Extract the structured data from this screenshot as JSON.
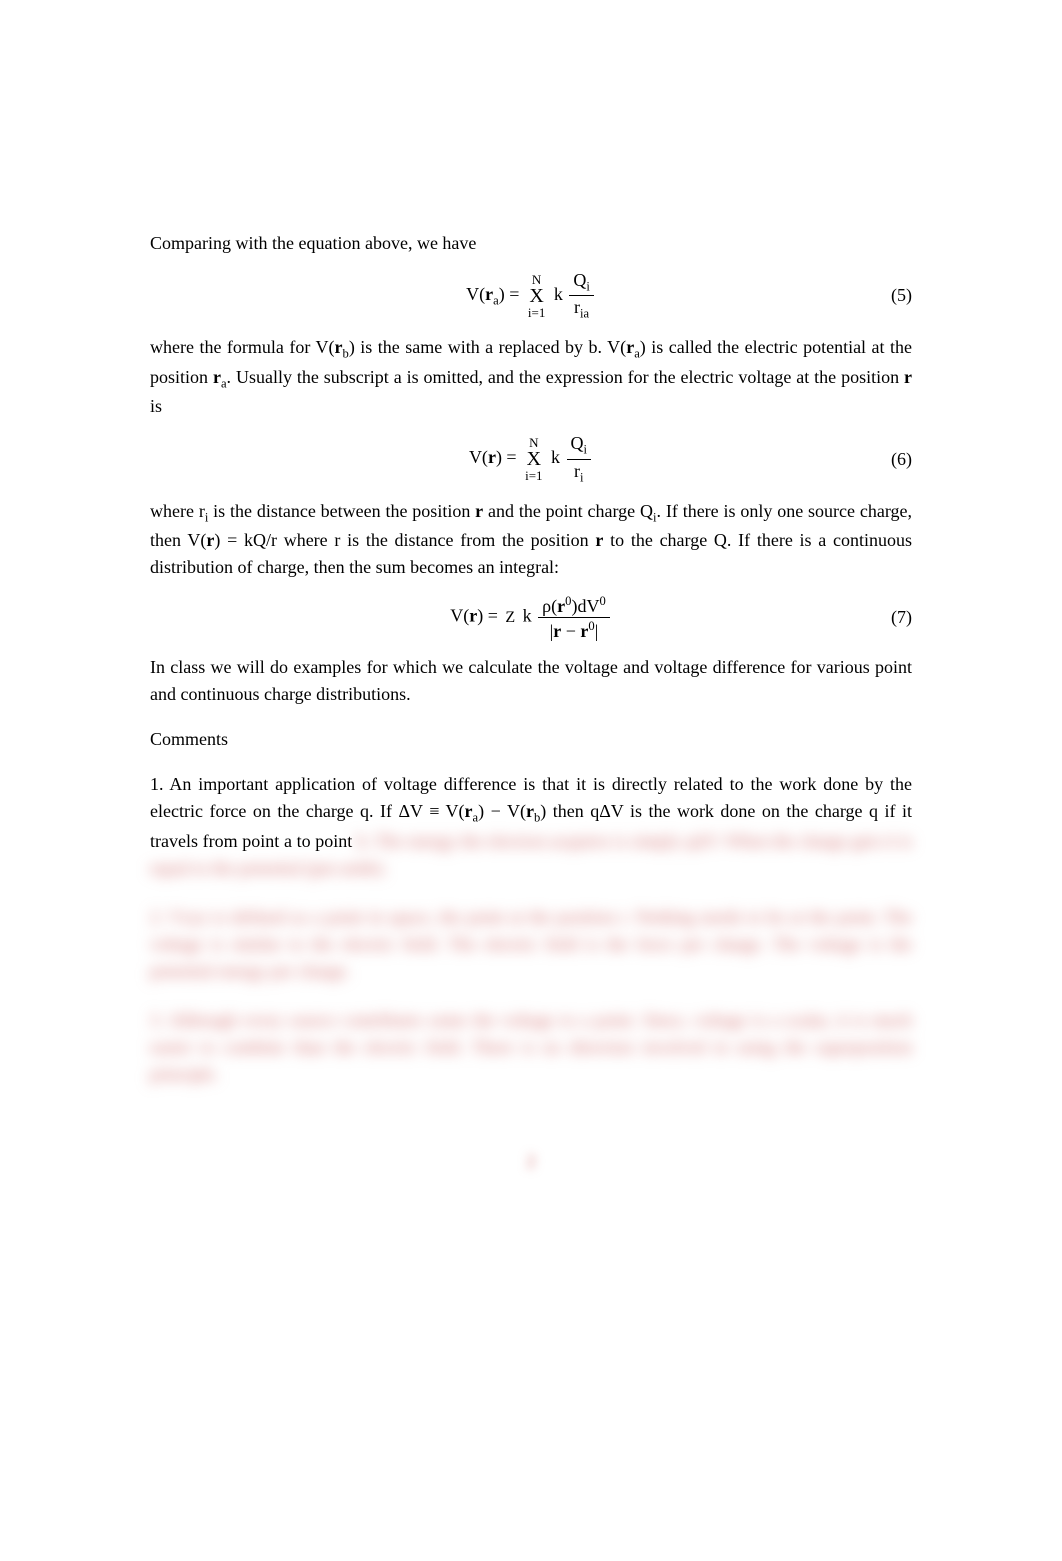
{
  "para1": "Comparing with the equation above, we have",
  "eq5": {
    "lhs_pre": "V(",
    "lhs_var": "r",
    "lhs_sub": "a",
    "lhs_post": ") = ",
    "sum_top": "N",
    "sum_sig": "X",
    "sum_bot": "i=1",
    "k": "k",
    "frac_top_pre": "Q",
    "frac_top_sub": "i",
    "frac_bot_pre": "r",
    "frac_bot_sub": "ia",
    "num": "(5)"
  },
  "para2_a": "where the formula for  V(",
  "para2_rb": "r",
  "para2_rb_sub": "b",
  "para2_b": ") is the same with  a replaced by  b.  V(",
  "para2_ra": "r",
  "para2_ra_sub": "a",
  "para2_c": ") is called the electric potential at the position  ",
  "para2_ra2": "r",
  "para2_ra2_sub": "a",
  "para2_d": ".  Usually the subscript  a is omitted, and the expression for the electric voltage at the position  ",
  "para2_r": "r",
  "para2_e": " is",
  "eq6": {
    "lhs_pre": "V(",
    "lhs_var": "r",
    "lhs_post": ") = ",
    "sum_top": "N",
    "sum_sig": "X",
    "sum_bot": "i=1",
    "k": "k",
    "frac_top_pre": "Q",
    "frac_top_sub": "i",
    "frac_bot_pre": "r",
    "frac_bot_sub": "i",
    "num": "(6)"
  },
  "para3_a": "where r",
  "para3_ri_sub": "i",
  "para3_b": " is the distance between the position  ",
  "para3_r1": "r",
  "para3_c": " and the point charge  Q",
  "para3_qi_sub": "i",
  "para3_d": ". If there is only one source charge, then  V(",
  "para3_r2": "r",
  "para3_e": ") = kQ/r  where r is the distance from the position  ",
  "para3_r3": "r",
  "para3_f": " to the charge  Q. If there is a continuous distribution of charge, then the sum becomes an integral:",
  "eq7": {
    "lhs_pre": "V(",
    "lhs_var": "r",
    "lhs_post": ") = ",
    "int_top": "Z",
    "k": "k",
    "frac_top_a": "ρ(",
    "frac_top_r": "r",
    "frac_top_b": "0",
    "frac_top_c": ")dV",
    "frac_top_d": "0",
    "frac_bot_a": "|",
    "frac_bot_r1": "r",
    "frac_bot_b": " − ",
    "frac_bot_r2": "r",
    "frac_bot_c": "0",
    "frac_bot_d": "|",
    "num": "(7)"
  },
  "para4": "In class we will do examples for which we calculate the voltage and voltage difference for various point and continuous charge distributions.",
  "comments_head": "Comments",
  "comment1_a": "1. An important application of voltage difference is that it is directly related to the work done by the electric force on the charge  q. If  ΔV ≡ V(",
  "comment1_ra": "r",
  "comment1_ra_sub": "a",
  "comment1_b": ") − V(",
  "comment1_rb": "r",
  "comment1_rb_sub": "b",
  "comment1_c": ") then  qΔV is the work done on the charge  q if it travels from point  a to point ",
  "blur1": "b. The energy the electron acquires is simply  qΔV. When the charge gets it is equal to the potential (put aside).",
  "blur2": "2. Vxyz is defined as a point in space, the point at the position  r. Nothing needs to be at the point. The voltage is similar to the electric field. The electric field is the force per charge. The voltage is the potential energy per charge.",
  "blur3": "3. Although every source contributes some the voltage to a point. Since, voltage is a scalar, it is much easier to combine than the electric field. There is no direction involved in using the superposition principle.",
  "page_num": "2"
}
